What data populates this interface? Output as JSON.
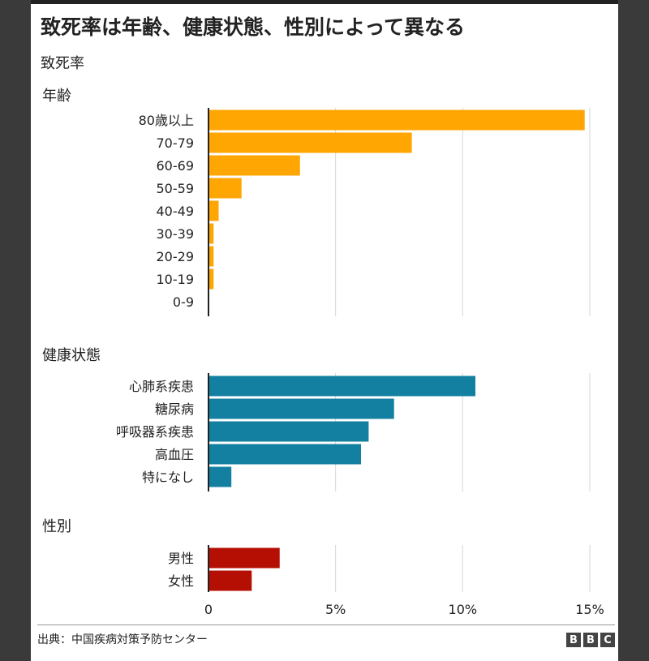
{
  "title": "致死率は年齢、健康状態、性別によって異なる",
  "subtitle": "致死率",
  "source": "出典：中国疾病対策予防センター",
  "logo": [
    "B",
    "B",
    "C"
  ],
  "colors": {
    "age": "#FFA602",
    "health": "#1380A1",
    "sex": "#B50F04"
  },
  "chart_data": {
    "type": "bar",
    "orientation": "horizontal",
    "unit": "%",
    "xlim": [
      0,
      15
    ],
    "x_ticks": [
      {
        "value": 0,
        "label": "0"
      },
      {
        "value": 5,
        "label": "5%"
      },
      {
        "value": 10,
        "label": "10%"
      },
      {
        "value": 15,
        "label": "15%"
      }
    ],
    "grid": true,
    "groups": [
      {
        "name": "年齢",
        "color_key": "age",
        "categories": [
          "80歳以上",
          "70-79",
          "60-69",
          "50-59",
          "40-49",
          "30-39",
          "20-29",
          "10-19",
          "0-9"
        ],
        "values": [
          14.8,
          8.0,
          3.6,
          1.3,
          0.4,
          0.2,
          0.2,
          0.2,
          0
        ]
      },
      {
        "name": "健康状態",
        "color_key": "health",
        "categories": [
          "心肺系疾患",
          "糖尿病",
          "呼吸器系疾患",
          "高血圧",
          "特になし"
        ],
        "values": [
          10.5,
          7.3,
          6.3,
          6.0,
          0.9
        ]
      },
      {
        "name": "性別",
        "color_key": "sex",
        "categories": [
          "男性",
          "女性"
        ],
        "values": [
          2.8,
          1.7
        ]
      }
    ]
  }
}
